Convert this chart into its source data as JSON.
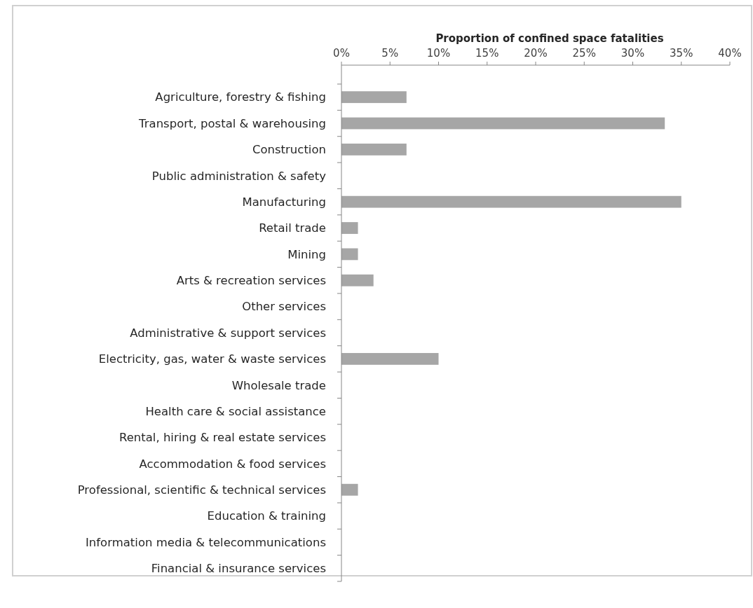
{
  "chart_data": {
    "type": "bar",
    "orientation": "horizontal",
    "xlabel": "Proportion of confined space fatalities",
    "categories": [
      "Agriculture, forestry & fishing",
      "Transport, postal & warehousing",
      "Construction",
      "Public administration & safety",
      "Manufacturing",
      "Retail trade",
      "Mining",
      "Arts & recreation services",
      "Other services",
      "Administrative & support services",
      "Electricity, gas, water & waste services",
      "Wholesale trade",
      "Health care & social assistance",
      "Rental, hiring & real estate services",
      "Accommodation & food services",
      "Professional, scientific & technical services",
      "Education & training",
      "Information media & telecommunications",
      "Financial & insurance services"
    ],
    "values": [
      6.7,
      33.3,
      6.7,
      0,
      35,
      1.7,
      1.7,
      3.3,
      0,
      0,
      10,
      0,
      0,
      0,
      0,
      1.7,
      0,
      0,
      0
    ],
    "color": "#a6a6a6",
    "xlim": [
      0,
      40
    ],
    "xticks": [
      {
        "value": 0,
        "label": "0%"
      },
      {
        "value": 5,
        "label": "5%"
      },
      {
        "value": 10,
        "label": "10%"
      },
      {
        "value": 15,
        "label": "15%"
      },
      {
        "value": 20,
        "label": "20%"
      },
      {
        "value": 25,
        "label": "25%"
      },
      {
        "value": 30,
        "label": "30%"
      },
      {
        "value": 35,
        "label": "35%"
      },
      {
        "value": 40,
        "label": "40%"
      }
    ],
    "grid": false
  }
}
